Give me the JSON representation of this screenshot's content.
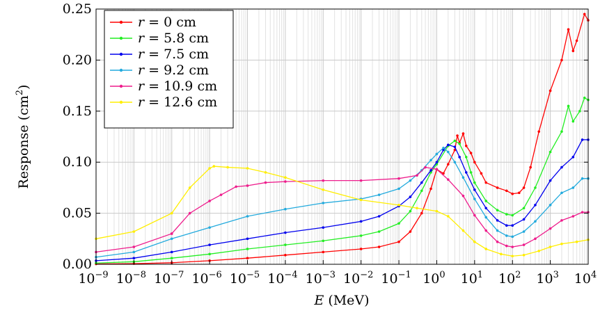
{
  "chart_data": {
    "type": "line",
    "xscale": "log",
    "xlabel_var": "E",
    "xlabel_unit": "(MeV)",
    "ylabel_main": "Response (cm",
    "ylabel_sup": "2",
    "ylabel_close": ")",
    "xlim": [
      1e-09,
      10000
    ],
    "ylim": [
      0,
      0.25
    ],
    "grid": true,
    "legend_position": "top-left",
    "x_ticks": [
      {
        "value": 1e-09,
        "base": "10",
        "exp": "−9"
      },
      {
        "value": 1e-08,
        "base": "10",
        "exp": "−8"
      },
      {
        "value": 1e-07,
        "base": "10",
        "exp": "−7"
      },
      {
        "value": 1e-06,
        "base": "10",
        "exp": "−6"
      },
      {
        "value": 1e-05,
        "base": "10",
        "exp": "−5"
      },
      {
        "value": 0.0001,
        "base": "10",
        "exp": "−4"
      },
      {
        "value": 0.001,
        "base": "10",
        "exp": "−3"
      },
      {
        "value": 0.01,
        "base": "10",
        "exp": "−2"
      },
      {
        "value": 0.1,
        "base": "10",
        "exp": "−1"
      },
      {
        "value": 1,
        "base": "10",
        "exp": "0"
      },
      {
        "value": 10,
        "base": "10",
        "exp": "1"
      },
      {
        "value": 100,
        "base": "10",
        "exp": "2"
      },
      {
        "value": 1000,
        "base": "10",
        "exp": "3"
      },
      {
        "value": 10000,
        "base": "10",
        "exp": "4"
      }
    ],
    "y_ticks": [
      {
        "value": 0.0,
        "label": "0.00"
      },
      {
        "value": 0.05,
        "label": "0.05"
      },
      {
        "value": 0.1,
        "label": "0.10"
      },
      {
        "value": 0.15,
        "label": "0.15"
      },
      {
        "value": 0.2,
        "label": "0.20"
      },
      {
        "value": 0.25,
        "label": "0.25"
      }
    ],
    "series": [
      {
        "name": "r = 0 cm",
        "var": "r",
        "eq": " = ",
        "val": "0 cm",
        "color": "#ff0000",
        "points": [
          [
            1e-09,
            0.0003
          ],
          [
            1e-08,
            0.0006
          ],
          [
            1e-07,
            0.0015
          ],
          [
            1e-06,
            0.0035
          ],
          [
            1e-05,
            0.006
          ],
          [
            0.0001,
            0.009
          ],
          [
            0.001,
            0.012
          ],
          [
            0.01,
            0.015
          ],
          [
            0.03,
            0.017
          ],
          [
            0.1,
            0.022
          ],
          [
            0.2,
            0.032
          ],
          [
            0.4,
            0.05
          ],
          [
            0.7,
            0.074
          ],
          [
            1,
            0.093
          ],
          [
            1.5,
            0.089
          ],
          [
            2,
            0.098
          ],
          [
            3,
            0.112
          ],
          [
            3.5,
            0.126
          ],
          [
            4,
            0.119
          ],
          [
            5,
            0.128
          ],
          [
            6,
            0.116
          ],
          [
            8,
            0.109
          ],
          [
            10,
            0.1
          ],
          [
            15,
            0.089
          ],
          [
            20,
            0.08
          ],
          [
            40,
            0.075
          ],
          [
            70,
            0.072
          ],
          [
            100,
            0.069
          ],
          [
            150,
            0.07
          ],
          [
            200,
            0.075
          ],
          [
            300,
            0.095
          ],
          [
            500,
            0.13
          ],
          [
            1000,
            0.17
          ],
          [
            2000,
            0.2
          ],
          [
            3000,
            0.23
          ],
          [
            4000,
            0.209
          ],
          [
            5000,
            0.219
          ],
          [
            8000,
            0.245
          ],
          [
            10000,
            0.239
          ]
        ]
      },
      {
        "name": "r = 5.8 cm",
        "var": "r",
        "eq": " = ",
        "val": "5.8 cm",
        "color": "#22ee22",
        "points": [
          [
            1e-09,
            0.0012
          ],
          [
            1e-08,
            0.0025
          ],
          [
            1e-07,
            0.006
          ],
          [
            1e-06,
            0.01
          ],
          [
            1e-05,
            0.015
          ],
          [
            0.0001,
            0.019
          ],
          [
            0.001,
            0.023
          ],
          [
            0.01,
            0.028
          ],
          [
            0.03,
            0.032
          ],
          [
            0.1,
            0.04
          ],
          [
            0.2,
            0.052
          ],
          [
            0.4,
            0.072
          ],
          [
            0.7,
            0.09
          ],
          [
            1,
            0.098
          ],
          [
            2,
            0.116
          ],
          [
            3,
            0.121
          ],
          [
            4,
            0.118
          ],
          [
            6,
            0.105
          ],
          [
            8,
            0.09
          ],
          [
            10,
            0.08
          ],
          [
            20,
            0.062
          ],
          [
            40,
            0.053
          ],
          [
            70,
            0.049
          ],
          [
            100,
            0.048
          ],
          [
            200,
            0.055
          ],
          [
            400,
            0.075
          ],
          [
            1000,
            0.11
          ],
          [
            2000,
            0.13
          ],
          [
            3000,
            0.155
          ],
          [
            4000,
            0.14
          ],
          [
            6000,
            0.15
          ],
          [
            8000,
            0.163
          ],
          [
            10000,
            0.161
          ]
        ]
      },
      {
        "name": "r = 7.5 cm",
        "var": "r",
        "eq": " = ",
        "val": "7.5 cm",
        "color": "#0000ee",
        "points": [
          [
            1e-09,
            0.0035
          ],
          [
            1e-08,
            0.006
          ],
          [
            1e-07,
            0.012
          ],
          [
            1e-06,
            0.019
          ],
          [
            1e-05,
            0.025
          ],
          [
            0.0001,
            0.031
          ],
          [
            0.001,
            0.036
          ],
          [
            0.01,
            0.042
          ],
          [
            0.03,
            0.047
          ],
          [
            0.1,
            0.057
          ],
          [
            0.2,
            0.066
          ],
          [
            0.4,
            0.08
          ],
          [
            0.7,
            0.092
          ],
          [
            1,
            0.1
          ],
          [
            1.5,
            0.112
          ],
          [
            2,
            0.117
          ],
          [
            3,
            0.115
          ],
          [
            4,
            0.105
          ],
          [
            6,
            0.09
          ],
          [
            10,
            0.073
          ],
          [
            20,
            0.055
          ],
          [
            40,
            0.043
          ],
          [
            70,
            0.038
          ],
          [
            100,
            0.038
          ],
          [
            200,
            0.044
          ],
          [
            400,
            0.058
          ],
          [
            1000,
            0.082
          ],
          [
            2000,
            0.095
          ],
          [
            4000,
            0.105
          ],
          [
            7000,
            0.122
          ],
          [
            10000,
            0.122
          ]
        ]
      },
      {
        "name": "r = 9.2 cm",
        "var": "r",
        "eq": " = ",
        "val": "9.2 cm",
        "color": "#22aadd",
        "points": [
          [
            1e-09,
            0.007
          ],
          [
            1e-08,
            0.012
          ],
          [
            1e-07,
            0.025
          ],
          [
            1e-06,
            0.036
          ],
          [
            1e-05,
            0.047
          ],
          [
            0.0001,
            0.054
          ],
          [
            0.001,
            0.06
          ],
          [
            0.01,
            0.064
          ],
          [
            0.03,
            0.068
          ],
          [
            0.1,
            0.074
          ],
          [
            0.2,
            0.082
          ],
          [
            0.4,
            0.092
          ],
          [
            0.7,
            0.102
          ],
          [
            1,
            0.108
          ],
          [
            1.5,
            0.114
          ],
          [
            2,
            0.11
          ],
          [
            3,
            0.1
          ],
          [
            5,
            0.085
          ],
          [
            10,
            0.064
          ],
          [
            20,
            0.046
          ],
          [
            40,
            0.033
          ],
          [
            70,
            0.028
          ],
          [
            100,
            0.027
          ],
          [
            200,
            0.032
          ],
          [
            400,
            0.042
          ],
          [
            1000,
            0.058
          ],
          [
            2000,
            0.07
          ],
          [
            4000,
            0.075
          ],
          [
            7000,
            0.084
          ],
          [
            10000,
            0.084
          ]
        ]
      },
      {
        "name": "r = 10.9 cm",
        "var": "r",
        "eq": " = ",
        "val": "10.9 cm",
        "color": "#ee1c8c",
        "points": [
          [
            1e-09,
            0.012
          ],
          [
            1e-08,
            0.017
          ],
          [
            1e-07,
            0.03
          ],
          [
            1e-07,
            0.03
          ],
          [
            3e-07,
            0.05
          ],
          [
            1e-06,
            0.062
          ],
          [
            2e-06,
            0.068
          ],
          [
            5e-06,
            0.076
          ],
          [
            1e-05,
            0.077
          ],
          [
            3e-05,
            0.08
          ],
          [
            0.0001,
            0.081
          ],
          [
            0.001,
            0.082
          ],
          [
            0.01,
            0.082
          ],
          [
            0.1,
            0.084
          ],
          [
            0.3,
            0.087
          ],
          [
            0.5,
            0.095
          ],
          [
            1,
            0.093
          ],
          [
            2,
            0.083
          ],
          [
            5,
            0.067
          ],
          [
            10,
            0.048
          ],
          [
            20,
            0.033
          ],
          [
            40,
            0.022
          ],
          [
            70,
            0.018
          ],
          [
            100,
            0.017
          ],
          [
            200,
            0.019
          ],
          [
            400,
            0.025
          ],
          [
            1000,
            0.035
          ],
          [
            2000,
            0.043
          ],
          [
            4000,
            0.047
          ],
          [
            7000,
            0.051
          ],
          [
            10000,
            0.051
          ]
        ]
      },
      {
        "name": "r = 12.6 cm",
        "var": "r",
        "eq": " = ",
        "val": "12.6 cm",
        "color": "#ffee00",
        "points": [
          [
            1e-09,
            0.025
          ],
          [
            1e-08,
            0.032
          ],
          [
            1e-07,
            0.05
          ],
          [
            3e-07,
            0.075
          ],
          [
            1e-06,
            0.094
          ],
          [
            1.3e-06,
            0.096
          ],
          [
            3e-06,
            0.095
          ],
          [
            1e-05,
            0.094
          ],
          [
            3e-05,
            0.09
          ],
          [
            0.0001,
            0.085
          ],
          [
            0.001,
            0.073
          ],
          [
            0.01,
            0.063
          ],
          [
            0.1,
            0.058
          ],
          [
            0.3,
            0.055
          ],
          [
            1,
            0.052
          ],
          [
            2,
            0.047
          ],
          [
            5,
            0.033
          ],
          [
            10,
            0.022
          ],
          [
            20,
            0.015
          ],
          [
            50,
            0.01
          ],
          [
            100,
            0.008
          ],
          [
            200,
            0.009
          ],
          [
            500,
            0.013
          ],
          [
            1000,
            0.017
          ],
          [
            2000,
            0.02
          ],
          [
            5000,
            0.022
          ],
          [
            10000,
            0.024
          ]
        ]
      }
    ]
  }
}
